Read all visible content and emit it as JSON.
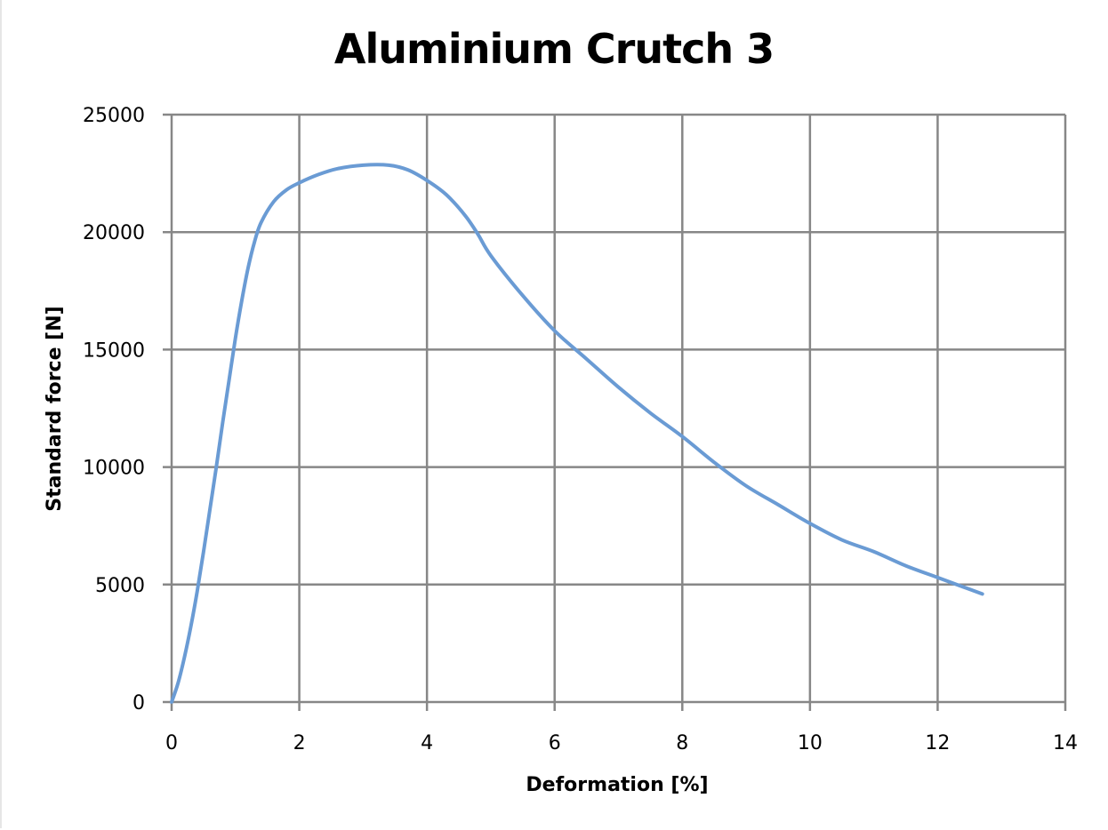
{
  "chart_data": {
    "type": "line",
    "title": "Aluminium Crutch 3",
    "xlabel": "Deformation [%]",
    "ylabel": "Standard force [N]",
    "xlim": [
      0,
      14
    ],
    "ylim": [
      0,
      25000
    ],
    "x_ticks": [
      0,
      2,
      4,
      6,
      8,
      10,
      12,
      14
    ],
    "y_ticks": [
      0,
      5000,
      10000,
      15000,
      20000,
      25000
    ],
    "grid": true,
    "legend": null,
    "series": [
      {
        "name": "Aluminium Crutch 3",
        "color": "#6a9bd4",
        "x": [
          0,
          0.1,
          0.2,
          0.3,
          0.4,
          0.5,
          0.6,
          0.7,
          0.8,
          0.9,
          1.0,
          1.1,
          1.2,
          1.3,
          1.4,
          1.6,
          1.8,
          2.0,
          2.3,
          2.6,
          3.0,
          3.4,
          3.7,
          4.0,
          4.3,
          4.6,
          4.8,
          5.0,
          5.5,
          6.0,
          6.5,
          7.0,
          7.5,
          8.0,
          8.5,
          9.0,
          9.5,
          10.0,
          10.5,
          11.0,
          11.5,
          12.0,
          12.4,
          12.7
        ],
        "values": [
          0,
          800,
          1900,
          3200,
          4700,
          6400,
          8200,
          10000,
          11900,
          13700,
          15500,
          17100,
          18500,
          19600,
          20400,
          21300,
          21800,
          22100,
          22450,
          22700,
          22850,
          22850,
          22650,
          22200,
          21600,
          20700,
          19900,
          19000,
          17300,
          15800,
          14600,
          13400,
          12300,
          11300,
          10200,
          9200,
          8400,
          7600,
          6900,
          6400,
          5800,
          5300,
          4900,
          4600
        ]
      }
    ]
  }
}
